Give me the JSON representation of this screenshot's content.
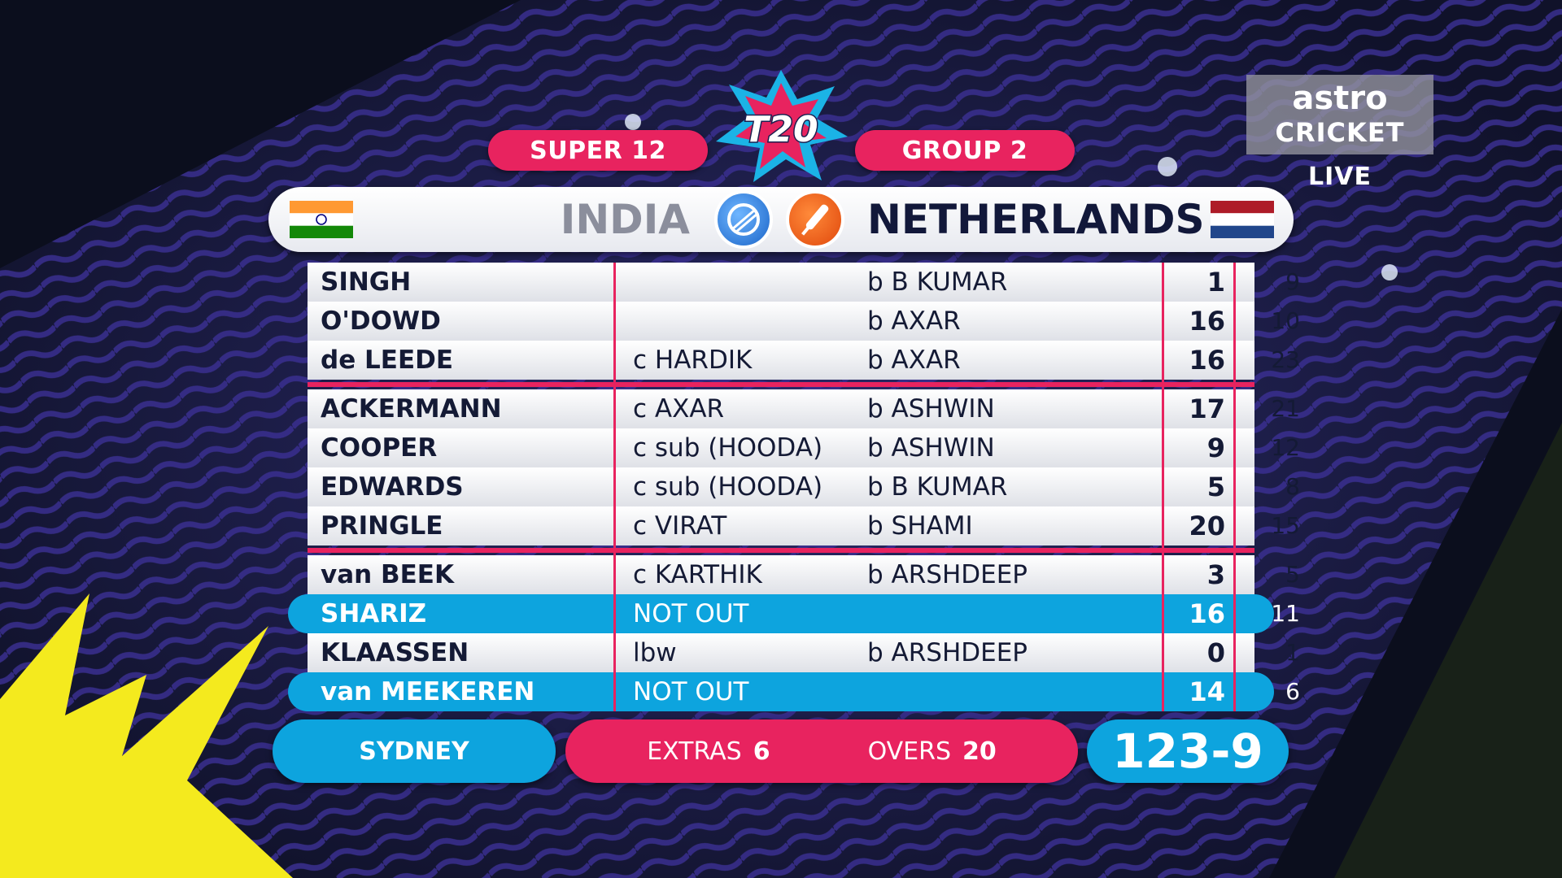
{
  "header": {
    "stage": "SUPER 12",
    "group": "GROUP 2",
    "logo": "T20"
  },
  "broadcaster": {
    "brand": "astro",
    "channel": "CRICKET",
    "status": "LIVE"
  },
  "teams": {
    "home": {
      "name": "INDIA",
      "flag": "india-flag-icon"
    },
    "batting": {
      "name": "NETHERLANDS",
      "flag": "netherlands-flag-icon"
    }
  },
  "batting": [
    {
      "name": "SINGH",
      "how_out": "",
      "bowler": "b B KUMAR",
      "runs": "1",
      "balls": "9",
      "not_out": false
    },
    {
      "name": "O'DOWD",
      "how_out": "",
      "bowler": "b AXAR",
      "runs": "16",
      "balls": "10",
      "not_out": false
    },
    {
      "name": "de LEEDE",
      "how_out": "c HARDIK",
      "bowler": "b AXAR",
      "runs": "16",
      "balls": "23",
      "not_out": false
    },
    {
      "name": "ACKERMANN",
      "how_out": "c AXAR",
      "bowler": "b ASHWIN",
      "runs": "17",
      "balls": "21",
      "not_out": false
    },
    {
      "name": "COOPER",
      "how_out": "c sub (HOODA)",
      "bowler": "b ASHWIN",
      "runs": "9",
      "balls": "12",
      "not_out": false
    },
    {
      "name": "EDWARDS",
      "how_out": "c sub (HOODA)",
      "bowler": "b B KUMAR",
      "runs": "5",
      "balls": "8",
      "not_out": false
    },
    {
      "name": "PRINGLE",
      "how_out": "c VIRAT",
      "bowler": "b SHAMI",
      "runs": "20",
      "balls": "15",
      "not_out": false
    },
    {
      "name": "van BEEK",
      "how_out": "c KARTHIK",
      "bowler": "b ARSHDEEP",
      "runs": "3",
      "balls": "5",
      "not_out": false
    },
    {
      "name": "SHARIZ",
      "how_out": "NOT OUT",
      "bowler": "",
      "runs": "16",
      "balls": "11",
      "not_out": true
    },
    {
      "name": "KLAASSEN",
      "how_out": "lbw",
      "bowler": "b ARSHDEEP",
      "runs": "0",
      "balls": "1",
      "not_out": false
    },
    {
      "name": "van MEEKEREN",
      "how_out": "NOT OUT",
      "bowler": "",
      "runs": "14",
      "balls": "6",
      "not_out": true
    }
  ],
  "footer": {
    "venue": "SYDNEY",
    "extras_label": "EXTRAS",
    "extras": "6",
    "overs_label": "OVERS",
    "overs": "20",
    "total": "123-9"
  },
  "colors": {
    "accent_pink": "#e8235f",
    "accent_blue": "#0da4de",
    "text_dark": "#141a35"
  }
}
